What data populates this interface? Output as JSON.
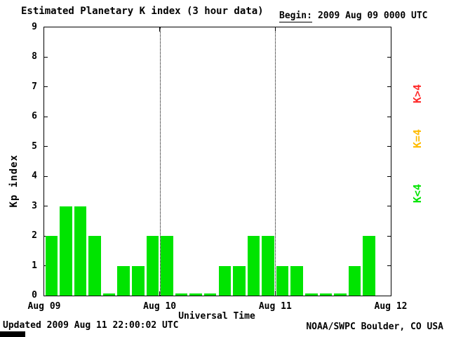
{
  "title": "Estimated Planetary K index (3 hour data)",
  "begin": {
    "label": "Begin:",
    "value": "2009 Aug 09 0000 UTC"
  },
  "footer": {
    "updated": "Updated 2009 Aug 11 22:00:02 UTC",
    "source": "NOAA/SWPC Boulder, CO USA"
  },
  "legend": [
    {
      "label": "K>4",
      "color": "#ff2a2a"
    },
    {
      "label": "K=4",
      "color": "#ffbb00"
    },
    {
      "label": "K<4",
      "color": "#00e400"
    }
  ],
  "colors": {
    "bar_green": "#00e400",
    "axis": "#000000",
    "background": "#ffffff"
  },
  "chart_data": {
    "type": "bar",
    "title": "Estimated Planetary K index (3 hour data)",
    "xlabel": "Universal Time",
    "ylabel": "Kp index",
    "begin": "2009 Aug 09 0000 UTC",
    "interval_hours": 3,
    "ylim": [
      0,
      9
    ],
    "y_ticks": [
      0,
      1,
      2,
      3,
      4,
      5,
      6,
      7,
      8,
      9
    ],
    "x_tick_labels": [
      "Aug 09",
      "Aug 10",
      "Aug 11",
      "Aug 12"
    ],
    "slots_total": 24,
    "day_boundary_slots": [
      8,
      16
    ],
    "kp_values": [
      2,
      3,
      3,
      2,
      0,
      1,
      1,
      2,
      2,
      0,
      0,
      0,
      1,
      1,
      2,
      2,
      1,
      1,
      0,
      0,
      0,
      1,
      2,
      null
    ],
    "bar_color": "#00e400",
    "grid": "vertical dotted lines at day boundaries",
    "legend_position": "right"
  }
}
